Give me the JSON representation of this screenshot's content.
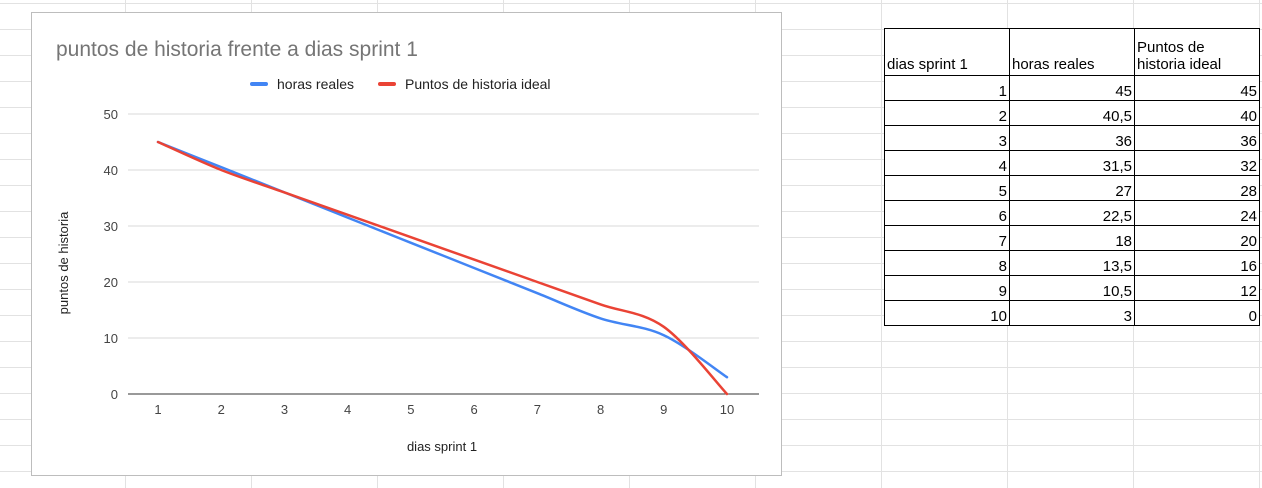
{
  "chart_data": {
    "type": "line",
    "title": "puntos de historia frente a dias sprint 1",
    "xlabel": "dias sprint 1",
    "ylabel": "puntos de historia",
    "x": [
      1,
      2,
      3,
      4,
      5,
      6,
      7,
      8,
      9,
      10
    ],
    "ylim": [
      0,
      50
    ],
    "yticks": [
      0,
      10,
      20,
      30,
      40,
      50
    ],
    "grid": true,
    "legend": "top",
    "series": [
      {
        "name": "horas reales",
        "color": "#4285f4",
        "values": [
          45,
          40.5,
          36,
          31.5,
          27,
          22.5,
          18,
          13.5,
          10.5,
          3
        ]
      },
      {
        "name": "Puntos de historia ideal",
        "color": "#ea4335",
        "values": [
          45,
          40,
          36,
          32,
          28,
          24,
          20,
          16,
          12,
          0
        ]
      }
    ]
  },
  "table": {
    "headers": [
      "dias sprint 1",
      "horas reales",
      "Puntos de historia ideal"
    ],
    "rows": [
      [
        "1",
        "45",
        "45"
      ],
      [
        "2",
        "40,5",
        "40"
      ],
      [
        "3",
        "36",
        "36"
      ],
      [
        "4",
        "31,5",
        "32"
      ],
      [
        "5",
        "27",
        "28"
      ],
      [
        "6",
        "22,5",
        "24"
      ],
      [
        "7",
        "18",
        "20"
      ],
      [
        "8",
        "13,5",
        "16"
      ],
      [
        "9",
        "10,5",
        "12"
      ],
      [
        "10",
        "3",
        "0"
      ]
    ]
  }
}
